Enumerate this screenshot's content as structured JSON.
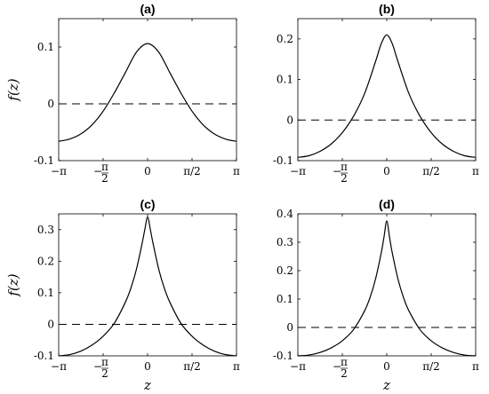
{
  "chart_data": [
    {
      "type": "line",
      "title": "(a)",
      "ylabel": "f(z)",
      "xlabel": "",
      "xlim": [
        -3.14159,
        3.14159
      ],
      "ylim": [
        -0.1,
        0.15
      ],
      "xticks": [
        -3.14159,
        -1.5708,
        0,
        1.5708,
        3.14159
      ],
      "xtick_labels": [
        "−π",
        "−π/2 (stacked fraction)",
        "0",
        "π/2",
        "π"
      ],
      "yticks": [
        -0.1,
        0,
        0.1
      ],
      "ytick_labels": [
        "-0.1",
        "0",
        "0.1"
      ],
      "reference_line": {
        "y": 0,
        "style": "dashed"
      },
      "series": [
        {
          "x": [
            -3.14159,
            -2.75,
            -2.356,
            -1.963,
            -1.571,
            -1.178,
            -0.785,
            -0.393,
            0,
            0.393,
            0.785,
            1.178,
            1.571,
            1.963,
            2.356,
            2.75,
            3.14159
          ],
          "values": [
            -0.066,
            -0.062,
            -0.053,
            -0.037,
            -0.013,
            0.019,
            0.055,
            0.091,
            0.106,
            0.091,
            0.055,
            0.019,
            -0.013,
            -0.037,
            -0.053,
            -0.062,
            -0.066
          ]
        }
      ]
    },
    {
      "type": "line",
      "title": "(b)",
      "ylabel": "",
      "xlabel": "",
      "xlim": [
        -3.14159,
        3.14159
      ],
      "ylim": [
        -0.1,
        0.25
      ],
      "xticks": [
        -3.14159,
        -1.5708,
        0,
        1.5708,
        3.14159
      ],
      "xtick_labels": [
        "−π",
        "−π/2 (stacked fraction)",
        "0",
        "π/2",
        "π"
      ],
      "yticks": [
        -0.1,
        0,
        0.1,
        0.2
      ],
      "ytick_labels": [
        "-0.1",
        "0",
        "0.1",
        "0.2"
      ],
      "reference_line": {
        "y": 0,
        "style": "dashed"
      },
      "series": [
        {
          "x": [
            -3.14159,
            -2.75,
            -2.356,
            -1.963,
            -1.571,
            -1.178,
            -0.785,
            -0.393,
            -0.196,
            0,
            0.196,
            0.393,
            0.785,
            1.178,
            1.571,
            1.963,
            2.356,
            2.75,
            3.14159
          ],
          "values": [
            -0.092,
            -0.088,
            -0.077,
            -0.059,
            -0.031,
            0.009,
            0.065,
            0.145,
            0.188,
            0.21,
            0.188,
            0.145,
            0.065,
            0.009,
            -0.031,
            -0.059,
            -0.077,
            -0.088,
            -0.092
          ]
        }
      ]
    },
    {
      "type": "line",
      "title": "(c)",
      "ylabel": "f(z)",
      "xlabel": "z",
      "xlim": [
        -3.14159,
        3.14159
      ],
      "ylim": [
        -0.1,
        0.35
      ],
      "xticks": [
        -3.14159,
        -1.5708,
        0,
        1.5708,
        3.14159
      ],
      "xtick_labels": [
        "−π",
        "−π/2 (stacked fraction)",
        "0",
        "π/2",
        "π"
      ],
      "yticks": [
        -0.1,
        0,
        0.1,
        0.2,
        0.3
      ],
      "ytick_labels": [
        "-0.1",
        "0",
        "0.1",
        "0.2",
        "0.3"
      ],
      "reference_line": {
        "y": 0,
        "style": "dashed"
      },
      "series": [
        {
          "x": [
            -3.14159,
            -2.75,
            -2.356,
            -1.963,
            -1.571,
            -1.178,
            -0.785,
            -0.589,
            -0.393,
            -0.196,
            -0.098,
            0,
            0.098,
            0.196,
            0.393,
            0.589,
            0.785,
            1.178,
            1.571,
            1.963,
            2.356,
            2.75,
            3.14159
          ],
          "values": [
            -0.1,
            -0.096,
            -0.085,
            -0.066,
            -0.038,
            0.003,
            0.07,
            0.115,
            0.175,
            0.255,
            0.3,
            0.34,
            0.3,
            0.255,
            0.175,
            0.115,
            0.07,
            0.003,
            -0.038,
            -0.066,
            -0.085,
            -0.096,
            -0.1
          ]
        }
      ]
    },
    {
      "type": "line",
      "title": "(d)",
      "ylabel": "",
      "xlabel": "z",
      "xlim": [
        -3.14159,
        3.14159
      ],
      "ylim": [
        -0.1,
        0.4
      ],
      "xticks": [
        -3.14159,
        -1.5708,
        0,
        1.5708,
        3.14159
      ],
      "xtick_labels": [
        "−π",
        "−π/2 (stacked fraction)",
        "0",
        "π/2",
        "π"
      ],
      "yticks": [
        -0.1,
        0,
        0.1,
        0.2,
        0.3,
        0.4
      ],
      "ytick_labels": [
        "-0.1",
        "0",
        "0.1",
        "0.2",
        "0.3",
        "0.4"
      ],
      "reference_line": {
        "y": 0,
        "style": "dashed"
      },
      "series": [
        {
          "x": [
            -3.14159,
            -2.75,
            -2.356,
            -1.963,
            -1.571,
            -1.178,
            -0.785,
            -0.589,
            -0.393,
            -0.196,
            -0.098,
            0,
            0.098,
            0.196,
            0.393,
            0.589,
            0.785,
            1.178,
            1.571,
            1.963,
            2.356,
            2.75,
            3.14159
          ],
          "values": [
            -0.1,
            -0.097,
            -0.088,
            -0.072,
            -0.047,
            -0.008,
            0.058,
            0.106,
            0.172,
            0.262,
            0.318,
            0.375,
            0.318,
            0.262,
            0.172,
            0.106,
            0.058,
            -0.008,
            -0.047,
            -0.072,
            -0.088,
            -0.097,
            -0.1
          ]
        }
      ]
    }
  ]
}
